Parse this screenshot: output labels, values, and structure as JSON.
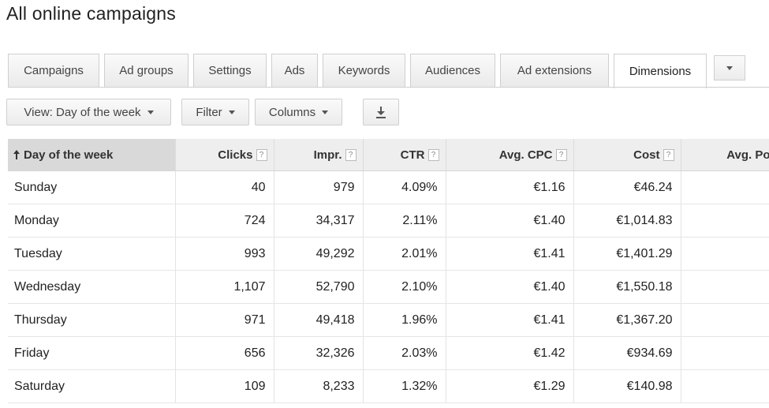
{
  "page": {
    "title": "All online campaigns"
  },
  "tabs": [
    {
      "label": "Campaigns"
    },
    {
      "label": "Ad groups"
    },
    {
      "label": "Settings"
    },
    {
      "label": "Ads"
    },
    {
      "label": "Keywords"
    },
    {
      "label": "Audiences"
    },
    {
      "label": "Ad extensions"
    },
    {
      "label": "Dimensions",
      "active": true
    }
  ],
  "toolbar": {
    "view_label": "View: Day of the week",
    "filter_label": "Filter",
    "columns_label": "Columns",
    "download_icon": "download-icon"
  },
  "table": {
    "columns": [
      {
        "label": "Day of the week",
        "sorted": "ascending"
      },
      {
        "label": "Clicks",
        "help": "?"
      },
      {
        "label": "Impr.",
        "help": "?"
      },
      {
        "label": "CTR",
        "help": "?"
      },
      {
        "label": "Avg. CPC",
        "help": "?"
      },
      {
        "label": "Cost",
        "help": "?"
      },
      {
        "label": "Avg. Po"
      }
    ],
    "rows": [
      [
        "Sunday",
        "40",
        "979",
        "4.09%",
        "€1.16",
        "€46.24",
        ""
      ],
      [
        "Monday",
        "724",
        "34,317",
        "2.11%",
        "€1.40",
        "€1,014.83",
        ""
      ],
      [
        "Tuesday",
        "993",
        "49,292",
        "2.01%",
        "€1.41",
        "€1,401.29",
        ""
      ],
      [
        "Wednesday",
        "1,107",
        "52,790",
        "2.10%",
        "€1.40",
        "€1,550.18",
        ""
      ],
      [
        "Thursday",
        "971",
        "49,418",
        "1.96%",
        "€1.41",
        "€1,367.20",
        ""
      ],
      [
        "Friday",
        "656",
        "32,326",
        "2.03%",
        "€1.42",
        "€934.69",
        ""
      ],
      [
        "Saturday",
        "109",
        "8,233",
        "1.32%",
        "€1.29",
        "€140.98",
        ""
      ]
    ]
  },
  "colors": {
    "header_bg": "#eeeeee",
    "sorted_header_bg": "#d9d9d9",
    "tab_border": "#cfcfcf"
  }
}
